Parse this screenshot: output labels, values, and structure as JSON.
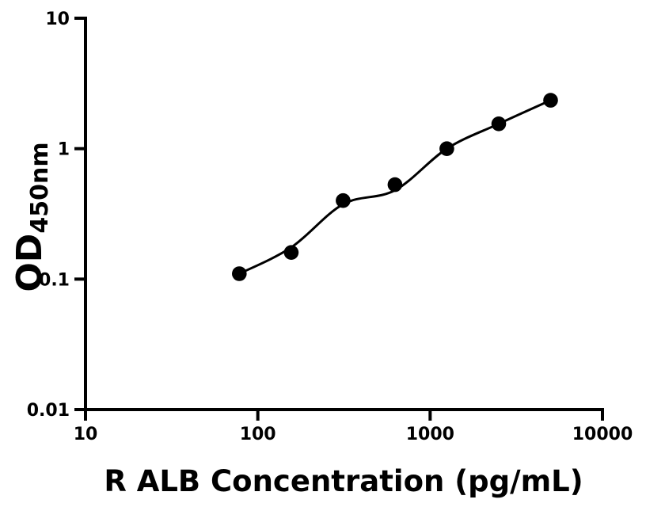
{
  "figure": {
    "background_color": "#ffffff",
    "foreground_color": "#000000"
  },
  "chart_data": {
    "type": "scatter",
    "title": "",
    "xlabel": "R ALB Concentration (pg/mL)",
    "ylabel_main": "OD",
    "ylabel_sub": "450nm",
    "x_scale": "log",
    "y_scale": "log",
    "xlim": [
      10,
      10000
    ],
    "ylim": [
      0.01,
      10
    ],
    "grid": false,
    "legend": null,
    "x_ticks": [
      {
        "value": 10,
        "label": "10"
      },
      {
        "value": 100,
        "label": "100"
      },
      {
        "value": 1000,
        "label": "1000"
      },
      {
        "value": 10000,
        "label": "10000"
      }
    ],
    "y_ticks": [
      {
        "value": 10,
        "label": "10"
      },
      {
        "value": 1,
        "label": "1"
      },
      {
        "value": 0.1,
        "label": "0.1"
      },
      {
        "value": 0.01,
        "label": "0.01"
      }
    ],
    "series": [
      {
        "name": "standard-curve",
        "marker": "filled-circle",
        "marker_color": "#000000",
        "line_color": "#000000",
        "points": [
          {
            "conc": 78.125,
            "od": 0.11
          },
          {
            "conc": 156.25,
            "od": 0.16
          },
          {
            "conc": 312.5,
            "od": 0.4
          },
          {
            "conc": 625,
            "od": 0.53
          },
          {
            "conc": 1250,
            "od": 1.0
          },
          {
            "conc": 2500,
            "od": 1.55
          },
          {
            "conc": 5000,
            "od": 2.35
          }
        ]
      }
    ],
    "fit_curve": [
      {
        "conc": 78.125,
        "od": 0.11
      },
      {
        "conc": 156.25,
        "od": 0.175
      },
      {
        "conc": 312.5,
        "od": 0.375
      },
      {
        "conc": 625,
        "od": 0.48
      },
      {
        "conc": 1250,
        "od": 1.0
      },
      {
        "conc": 2500,
        "od": 1.55
      },
      {
        "conc": 5000,
        "od": 2.35
      }
    ]
  }
}
